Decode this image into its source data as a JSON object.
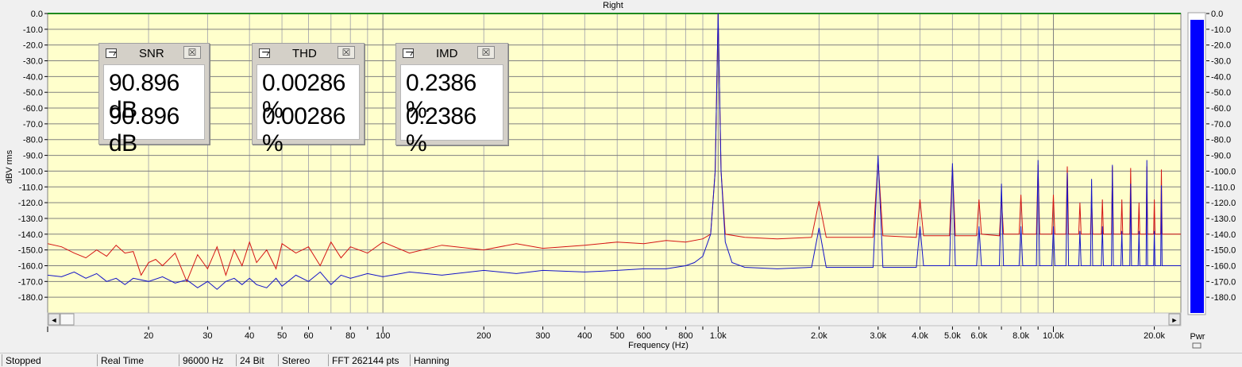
{
  "colors": {
    "plot_bg": "#ffffcc",
    "grid_major": "#808080",
    "grid_minor": "#b0b0b0",
    "top_line": "#1e8a1e",
    "red_trace": "#d41414",
    "blue_trace": "#1414c8",
    "pwr_bar": "#0000ff"
  },
  "chart_data": {
    "type": "line",
    "title": "Right",
    "xlabel": "Frequency (Hz)",
    "ylabel": "dBV rms",
    "xscale": "log",
    "xlim": [
      10,
      24000
    ],
    "ylim": [
      -190,
      0
    ],
    "grid": true,
    "x_tick_labels": [
      {
        "x": 20,
        "label": "20"
      },
      {
        "x": 30,
        "label": "30"
      },
      {
        "x": 40,
        "label": "40"
      },
      {
        "x": 50,
        "label": "50"
      },
      {
        "x": 60,
        "label": "60"
      },
      {
        "x": 80,
        "label": "80"
      },
      {
        "x": 100,
        "label": "100"
      },
      {
        "x": 200,
        "label": "200"
      },
      {
        "x": 300,
        "label": "300"
      },
      {
        "x": 400,
        "label": "400"
      },
      {
        "x": 500,
        "label": "500"
      },
      {
        "x": 600,
        "label": "600"
      },
      {
        "x": 800,
        "label": "800"
      },
      {
        "x": 1000,
        "label": "1.0k"
      },
      {
        "x": 2000,
        "label": "2.0k"
      },
      {
        "x": 3000,
        "label": "3.0k"
      },
      {
        "x": 4000,
        "label": "4.0k"
      },
      {
        "x": 5000,
        "label": "5.0k"
      },
      {
        "x": 6000,
        "label": "6.0k"
      },
      {
        "x": 8000,
        "label": "8.0k"
      },
      {
        "x": 10000,
        "label": "10.0k"
      },
      {
        "x": 20000,
        "label": "20.0k"
      }
    ],
    "y_ticks": [
      0,
      -10,
      -20,
      -30,
      -40,
      -50,
      -60,
      -70,
      -80,
      -90,
      -100,
      -110,
      -120,
      -130,
      -140,
      -150,
      -160,
      -170,
      -180
    ],
    "y_tick_labels": [
      "0.0",
      "-10.0",
      "-20.0",
      "-30.0",
      "-40.0",
      "-50.0",
      "-60.0",
      "-70.0",
      "-80.0",
      "-90.0",
      "-100.0",
      "-110.0",
      "-120.0",
      "-130.0",
      "-140.0",
      "-150.0",
      "-160.0",
      "-170.0",
      "-180.0"
    ],
    "series": [
      {
        "color": "#d41414",
        "points": [
          [
            10,
            -146
          ],
          [
            11,
            -148
          ],
          [
            12,
            -152
          ],
          [
            13,
            -155
          ],
          [
            14,
            -150
          ],
          [
            15,
            -154
          ],
          [
            16,
            -147
          ],
          [
            17,
            -152
          ],
          [
            18,
            -151
          ],
          [
            19,
            -166
          ],
          [
            20,
            -158
          ],
          [
            21,
            -156
          ],
          [
            22,
            -160
          ],
          [
            24,
            -152
          ],
          [
            26,
            -170
          ],
          [
            28,
            -153
          ],
          [
            30,
            -162
          ],
          [
            32,
            -148
          ],
          [
            34,
            -166
          ],
          [
            36,
            -150
          ],
          [
            38,
            -160
          ],
          [
            40,
            -145
          ],
          [
            42,
            -158
          ],
          [
            45,
            -150
          ],
          [
            48,
            -162
          ],
          [
            50,
            -146
          ],
          [
            55,
            -152
          ],
          [
            60,
            -148
          ],
          [
            65,
            -160
          ],
          [
            70,
            -145
          ],
          [
            75,
            -155
          ],
          [
            80,
            -148
          ],
          [
            90,
            -152
          ],
          [
            100,
            -145
          ],
          [
            120,
            -152
          ],
          [
            150,
            -147
          ],
          [
            200,
            -150
          ],
          [
            250,
            -146
          ],
          [
            300,
            -149
          ],
          [
            400,
            -147
          ],
          [
            500,
            -145
          ],
          [
            600,
            -146
          ],
          [
            700,
            -144
          ],
          [
            800,
            -145
          ],
          [
            900,
            -143
          ],
          [
            950,
            -140
          ],
          [
            980,
            -100
          ],
          [
            1000,
            0
          ],
          [
            1020,
            -100
          ],
          [
            1050,
            -140
          ],
          [
            1200,
            -142
          ],
          [
            1500,
            -143
          ],
          [
            1900,
            -142
          ],
          [
            2000,
            -119
          ],
          [
            2100,
            -142
          ],
          [
            2900,
            -142
          ],
          [
            3000,
            -93
          ],
          [
            3100,
            -141
          ],
          [
            3900,
            -142
          ],
          [
            4000,
            -118
          ],
          [
            4100,
            -141
          ],
          [
            4900,
            -141
          ],
          [
            5000,
            -97
          ],
          [
            5100,
            -141
          ],
          [
            5900,
            -141
          ],
          [
            6000,
            -118
          ],
          [
            6100,
            -140
          ],
          [
            6900,
            -141
          ],
          [
            7000,
            -117
          ],
          [
            7100,
            -140
          ],
          [
            7900,
            -140
          ],
          [
            8000,
            -115
          ],
          [
            8100,
            -140
          ],
          [
            8900,
            -140
          ],
          [
            9000,
            -96
          ],
          [
            9100,
            -140
          ],
          [
            9900,
            -140
          ],
          [
            10000,
            -115
          ],
          [
            10100,
            -140
          ],
          [
            10900,
            -140
          ],
          [
            11000,
            -97
          ],
          [
            11100,
            -140
          ],
          [
            11900,
            -140
          ],
          [
            12000,
            -120
          ],
          [
            12100,
            -140
          ],
          [
            12900,
            -140
          ],
          [
            13000,
            -116
          ],
          [
            13100,
            -140
          ],
          [
            13900,
            -140
          ],
          [
            14000,
            -118
          ],
          [
            14100,
            -140
          ],
          [
            14900,
            -140
          ],
          [
            15000,
            -97
          ],
          [
            15100,
            -140
          ],
          [
            15900,
            -140
          ],
          [
            16000,
            -118
          ],
          [
            16100,
            -140
          ],
          [
            16900,
            -140
          ],
          [
            17000,
            -98
          ],
          [
            17100,
            -140
          ],
          [
            17900,
            -140
          ],
          [
            18000,
            -120
          ],
          [
            18100,
            -140
          ],
          [
            18900,
            -140
          ],
          [
            19000,
            -97
          ],
          [
            19100,
            -140
          ],
          [
            19900,
            -140
          ],
          [
            20000,
            -118
          ],
          [
            20100,
            -140
          ],
          [
            20900,
            -140
          ],
          [
            21000,
            -99
          ],
          [
            21100,
            -140
          ],
          [
            22000,
            -140
          ],
          [
            24000,
            -140
          ]
        ]
      },
      {
        "color": "#1414c8",
        "points": [
          [
            10,
            -166
          ],
          [
            11,
            -167
          ],
          [
            12,
            -164
          ],
          [
            13,
            -168
          ],
          [
            14,
            -165
          ],
          [
            15,
            -170
          ],
          [
            16,
            -168
          ],
          [
            17,
            -172
          ],
          [
            18,
            -168
          ],
          [
            20,
            -170
          ],
          [
            22,
            -167
          ],
          [
            24,
            -171
          ],
          [
            26,
            -169
          ],
          [
            28,
            -174
          ],
          [
            30,
            -170
          ],
          [
            32,
            -175
          ],
          [
            34,
            -170
          ],
          [
            36,
            -168
          ],
          [
            38,
            -172
          ],
          [
            40,
            -168
          ],
          [
            42,
            -172
          ],
          [
            45,
            -174
          ],
          [
            48,
            -168
          ],
          [
            50,
            -173
          ],
          [
            55,
            -166
          ],
          [
            60,
            -170
          ],
          [
            65,
            -164
          ],
          [
            70,
            -172
          ],
          [
            75,
            -166
          ],
          [
            80,
            -168
          ],
          [
            90,
            -165
          ],
          [
            100,
            -167
          ],
          [
            120,
            -164
          ],
          [
            150,
            -166
          ],
          [
            200,
            -163
          ],
          [
            250,
            -165
          ],
          [
            300,
            -163
          ],
          [
            400,
            -164
          ],
          [
            500,
            -163
          ],
          [
            600,
            -162
          ],
          [
            700,
            -162
          ],
          [
            800,
            -160
          ],
          [
            850,
            -158
          ],
          [
            900,
            -154
          ],
          [
            950,
            -140
          ],
          [
            980,
            -100
          ],
          [
            1000,
            0
          ],
          [
            1020,
            -100
          ],
          [
            1050,
            -145
          ],
          [
            1100,
            -158
          ],
          [
            1200,
            -161
          ],
          [
            1500,
            -162
          ],
          [
            1900,
            -161
          ],
          [
            2000,
            -136
          ],
          [
            2100,
            -161
          ],
          [
            2900,
            -161
          ],
          [
            3000,
            -90
          ],
          [
            3100,
            -161
          ],
          [
            3900,
            -161
          ],
          [
            4000,
            -135
          ],
          [
            4100,
            -160
          ],
          [
            4900,
            -160
          ],
          [
            5000,
            -95
          ],
          [
            5100,
            -160
          ],
          [
            5900,
            -160
          ],
          [
            6000,
            -135
          ],
          [
            6100,
            -160
          ],
          [
            6900,
            -160
          ],
          [
            7000,
            -108
          ],
          [
            7100,
            -160
          ],
          [
            7900,
            -160
          ],
          [
            8000,
            -135
          ],
          [
            8100,
            -160
          ],
          [
            8900,
            -160
          ],
          [
            9000,
            -93
          ],
          [
            9100,
            -160
          ],
          [
            9900,
            -160
          ],
          [
            10000,
            -135
          ],
          [
            10100,
            -160
          ],
          [
            10900,
            -160
          ],
          [
            11000,
            -101
          ],
          [
            11100,
            -160
          ],
          [
            11900,
            -160
          ],
          [
            12000,
            -138
          ],
          [
            12100,
            -160
          ],
          [
            12900,
            -160
          ],
          [
            13000,
            -105
          ],
          [
            13100,
            -160
          ],
          [
            13900,
            -160
          ],
          [
            14000,
            -135
          ],
          [
            14100,
            -160
          ],
          [
            14900,
            -160
          ],
          [
            15000,
            -96
          ],
          [
            15100,
            -160
          ],
          [
            15900,
            -160
          ],
          [
            16000,
            -138
          ],
          [
            16100,
            -160
          ],
          [
            16900,
            -160
          ],
          [
            17000,
            -108
          ],
          [
            17100,
            -160
          ],
          [
            17900,
            -160
          ],
          [
            18000,
            -138
          ],
          [
            18100,
            -160
          ],
          [
            18900,
            -160
          ],
          [
            19000,
            -93
          ],
          [
            19100,
            -160
          ],
          [
            19900,
            -160
          ],
          [
            20000,
            -138
          ],
          [
            20100,
            -160
          ],
          [
            20900,
            -160
          ],
          [
            21000,
            -109
          ],
          [
            21100,
            -160
          ],
          [
            22000,
            -160
          ],
          [
            24000,
            -160
          ]
        ]
      }
    ],
    "pwr_meter": {
      "label": "Pwr",
      "level_db": -3,
      "tick_labels": [
        "0.0",
        "-10.0",
        "-20.0",
        "-30.0",
        "-40.0",
        "-50.0",
        "-60.0",
        "-70.0",
        "-80.0",
        "-90.0",
        "-100.0",
        "-110.0",
        "-120.0",
        "-130.0",
        "-140.0",
        "-150.0",
        "-160.0",
        "-170.0",
        "-180.0"
      ]
    }
  },
  "meters": [
    {
      "title": "SNR",
      "values": [
        "90.896 dB",
        "90.896 dB"
      ],
      "close": "☒"
    },
    {
      "title": "THD",
      "values": [
        "0.00286 %",
        "0.00286 %"
      ],
      "close": "☒"
    },
    {
      "title": "IMD",
      "values": [
        "0.2386 %",
        "0.2386 %"
      ],
      "close": "☒"
    }
  ],
  "scrollbar": {
    "left_arrow": "◄",
    "right_arrow": "►"
  },
  "status": [
    "Stopped",
    "Real Time",
    "96000 Hz",
    "24 Bit",
    "Stereo",
    "FFT 262144 pts",
    "Hanning"
  ]
}
